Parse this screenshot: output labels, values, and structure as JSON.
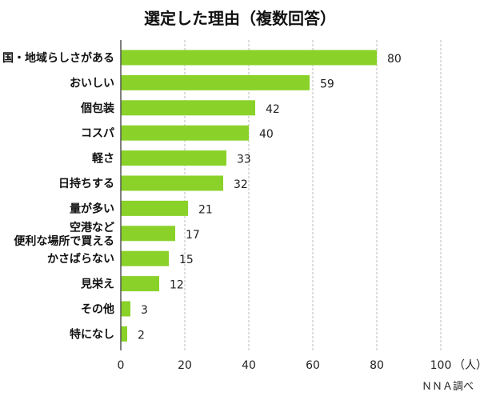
{
  "chart_data": {
    "type": "bar",
    "orientation": "horizontal",
    "title": "選定した理由（複数回答）",
    "categories": [
      "国・地域らしさがある",
      "おいしい",
      "個包装",
      "コスパ",
      "軽さ",
      "日持ちする",
      "量が多い",
      "空港など\n便利な場所で買える",
      "かさばらない",
      "見栄え",
      "その他",
      "特になし"
    ],
    "values": [
      80,
      59,
      42,
      40,
      33,
      32,
      21,
      17,
      15,
      12,
      3,
      2
    ],
    "xlim": [
      0,
      100
    ],
    "xticks": [
      "0",
      "20",
      "40",
      "60",
      "80",
      "100"
    ],
    "xunit": "（人）",
    "grid": "vertical dashed",
    "bar_color": "#8ad22a",
    "source": "ＮＮＡ調べ"
  }
}
